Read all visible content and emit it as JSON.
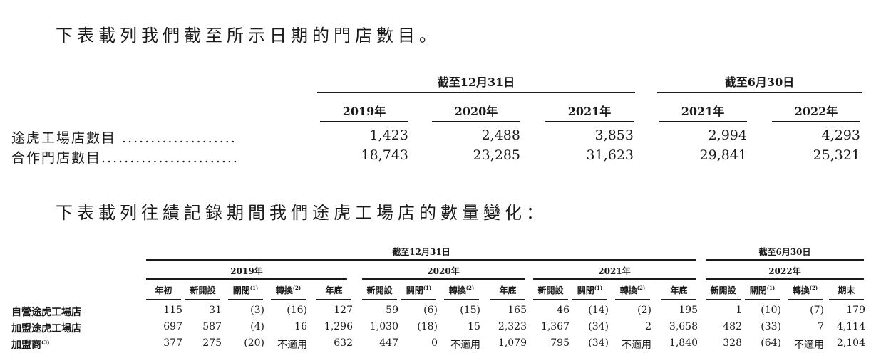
{
  "intro1": "下表載列我們截至所示日期的門店數目。",
  "table1": {
    "group_year_end": "截至12月31日",
    "group_june": "截至6月30日",
    "columns": [
      "2019年",
      "2020年",
      "2021年",
      "2021年",
      "2022年"
    ],
    "rows": [
      {
        "label": "途虎工場店數目 ....................",
        "values": [
          "1,423",
          "2,488",
          "3,853",
          "2,994",
          "4,293"
        ]
      },
      {
        "label": "合作門店數目........................",
        "values": [
          "18,743",
          "23,285",
          "31,623",
          "29,841",
          "25,321"
        ]
      }
    ]
  },
  "intro2": "下表載列往績記錄期間我們途虎工場店的數量變化：",
  "table2": {
    "group_year_end": "截至12月31日",
    "group_june": "截至6月30日",
    "years": [
      "2019年",
      "2020年",
      "2021年",
      "2022年"
    ],
    "subheaders": [
      {
        "text": "年初",
        "note": ""
      },
      {
        "text": "新開設",
        "note": ""
      },
      {
        "text": "關閉",
        "note": "(1)"
      },
      {
        "text": "轉換",
        "note": "(2)"
      },
      {
        "text": "年底",
        "note": ""
      },
      {
        "text": "新開設",
        "note": ""
      },
      {
        "text": "關閉",
        "note": "(1)"
      },
      {
        "text": "轉換",
        "note": "(2)"
      },
      {
        "text": "年底",
        "note": ""
      },
      {
        "text": "新開設",
        "note": ""
      },
      {
        "text": "關閉",
        "note": "(1)"
      },
      {
        "text": "轉換",
        "note": "(2)"
      },
      {
        "text": "年底",
        "note": ""
      },
      {
        "text": "新開設",
        "note": ""
      },
      {
        "text": "關閉",
        "note": "(1)"
      },
      {
        "text": "轉換",
        "note": "(2)"
      },
      {
        "text": "期末",
        "note": ""
      }
    ],
    "rows": [
      {
        "label": "自營途虎工場店",
        "note": "",
        "values": [
          "115",
          "31",
          "(3)",
          "(16)",
          "127",
          "59",
          "(6)",
          "(15)",
          "165",
          "46",
          "(14)",
          "(2)",
          "195",
          "1",
          "(10)",
          "(7)",
          "179"
        ]
      },
      {
        "label": "加盟途虎工場店",
        "note": "",
        "values": [
          "697",
          "587",
          "(4)",
          "16",
          "1,296",
          "1,030",
          "(18)",
          "15",
          "2,323",
          "1,367",
          "(34)",
          "2",
          "3,658",
          "482",
          "(33)",
          "7",
          "4,114"
        ]
      },
      {
        "label": "加盟商",
        "note": "(3)",
        "values": [
          "377",
          "275",
          "(20)",
          "不適用",
          "632",
          "447",
          "0",
          "不適用",
          "1,079",
          "795",
          "(34)",
          "不適用",
          "1,840",
          "328",
          "(64)",
          "不適用",
          "2,104"
        ]
      }
    ]
  }
}
